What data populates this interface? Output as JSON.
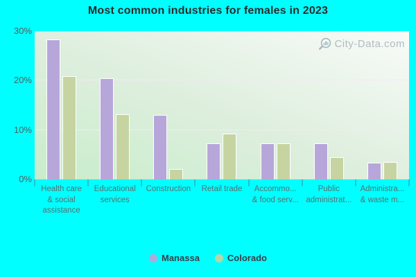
{
  "title": "Most common industries for females in 2023",
  "watermark": {
    "text": "City-Data.com"
  },
  "colors": {
    "page_background": "#00ffff",
    "title_text": "#2b2b2b",
    "manassa_bar": "#b7a6da",
    "colorado_bar": "#c6d4a2",
    "bar_border": "#ffffff",
    "plot_gradient_light": "#f8fbf8",
    "plot_gradient_green": "#c8edcb",
    "gridline": "#f3e9f3",
    "axis_label": "#557171",
    "ytick_label": "#4e5f5f",
    "legend_text": "#3c3c46",
    "tick_mark": "#3c8ca0"
  },
  "chart_data": {
    "type": "bar",
    "title": "Most common industries for females in 2023",
    "categories": [
      "Health care & social assistance",
      "Educational services",
      "Construction",
      "Retail trade",
      "Accommo... & food serv...",
      "Public administrat...",
      "Administra... & waste m..."
    ],
    "category_display_lines": [
      [
        "Health care",
        "& social",
        "assistance"
      ],
      [
        "Educational",
        "services"
      ],
      [
        "Construction"
      ],
      [
        "Retail trade"
      ],
      [
        "Accommo...",
        "& food serv..."
      ],
      [
        "Public",
        "administrat..."
      ],
      [
        "Administra...",
        "& waste m..."
      ]
    ],
    "series": [
      {
        "name": "Manassa",
        "color": "#b7a6da",
        "values": [
          28.3,
          20.5,
          13.0,
          7.3,
          7.3,
          7.3,
          3.4
        ]
      },
      {
        "name": "Colorado",
        "color": "#c6d4a2",
        "values": [
          20.9,
          13.2,
          2.1,
          9.3,
          7.3,
          4.5,
          3.5
        ]
      }
    ],
    "xlabel": "",
    "ylabel": "",
    "ylim": [
      0,
      30
    ],
    "yticks": [
      {
        "value": 0,
        "label": "0%"
      },
      {
        "value": 10,
        "label": "10%"
      },
      {
        "value": 20,
        "label": "20%"
      },
      {
        "value": 30,
        "label": "30%"
      }
    ],
    "grid": true,
    "legend_position": "bottom"
  },
  "legend": {
    "items": [
      {
        "label": "Manassa",
        "color": "#b7a6da"
      },
      {
        "label": "Colorado",
        "color": "#c6d4a2"
      }
    ]
  }
}
